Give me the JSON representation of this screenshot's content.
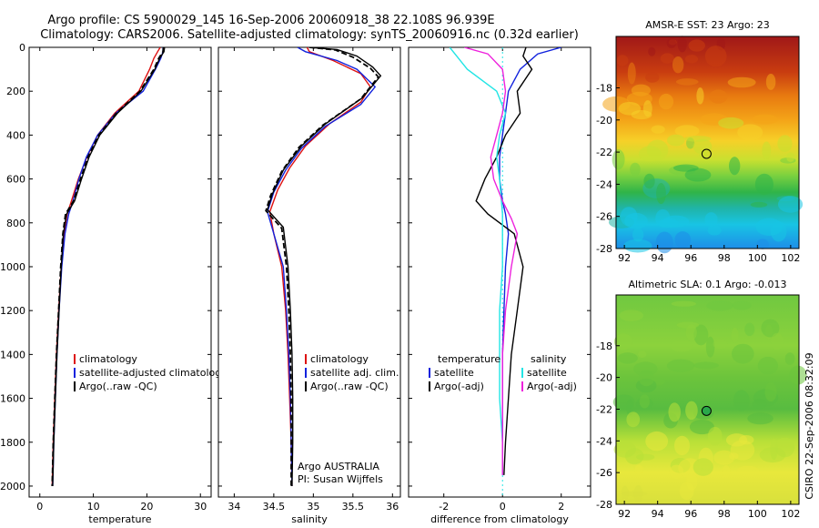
{
  "header": {
    "line1": "Argo profile: CS 5900029_145 16-Sep-2006 20060918_38 22.108S 96.939E",
    "line2": "Climatology: CARS2006. Satellite-adjusted climatology: synTS_20060916.nc (0.32d earlier)"
  },
  "side_text": "CSIRO 22-Sep-2006 08:32:09",
  "credit": {
    "line1": "Argo AUSTRALIA",
    "line2": "PI: Susan Wijffels"
  },
  "colors": {
    "climatology": "#dd1111",
    "satellite": "#1122dd",
    "argo": "#000000",
    "salinity_satellite": "#22e5e5",
    "salinity_argo": "#ee22dd"
  },
  "chart_data": [
    {
      "type": "line",
      "xlabel": "temperature",
      "ylim": [
        2050,
        0
      ],
      "xlim": [
        -2,
        32
      ],
      "xticks": [
        0,
        10,
        20,
        30
      ],
      "yticks": [
        0,
        200,
        400,
        600,
        800,
        1000,
        1200,
        1400,
        1600,
        1800,
        2000
      ],
      "legend": {
        "placement": "lower-right",
        "entries": [
          "climatology",
          "satellite-adjusted climatology",
          "Argo(..raw -QC)"
        ]
      },
      "series": [
        {
          "name": "climatology",
          "color": "#dd1111",
          "points": [
            [
              22.5,
              0
            ],
            [
              22,
              20
            ],
            [
              21.3,
              50
            ],
            [
              20.5,
              100
            ],
            [
              18.5,
              200
            ],
            [
              14,
              300
            ],
            [
              10.8,
              400
            ],
            [
              8.8,
              500
            ],
            [
              7.2,
              600
            ],
            [
              5.9,
              700
            ],
            [
              5.1,
              760
            ],
            [
              4.5,
              850
            ],
            [
              4,
              1000
            ],
            [
              3.5,
              1200
            ],
            [
              3.1,
              1400
            ],
            [
              2.8,
              1600
            ],
            [
              2.5,
              1800
            ],
            [
              2.3,
              2000
            ]
          ]
        },
        {
          "name": "satellite-adjusted climatology",
          "color": "#1122dd",
          "points": [
            [
              23,
              0
            ],
            [
              23,
              20
            ],
            [
              22.6,
              50
            ],
            [
              21.6,
              100
            ],
            [
              19.3,
              200
            ],
            [
              14.2,
              300
            ],
            [
              10.8,
              400
            ],
            [
              8.7,
              500
            ],
            [
              7.3,
              600
            ],
            [
              6.2,
              700
            ],
            [
              5.4,
              760
            ],
            [
              4.7,
              850
            ],
            [
              4.1,
              1000
            ],
            [
              3.6,
              1200
            ],
            [
              3.2,
              1400
            ],
            [
              2.9,
              1600
            ],
            [
              2.6,
              1800
            ],
            [
              2.4,
              2000
            ]
          ]
        },
        {
          "name": "Argo(..raw -QC)",
          "color": "#000000",
          "points": [
            [
              23.3,
              0
            ],
            [
              23.2,
              20
            ],
            [
              22.4,
              50
            ],
            [
              21.5,
              100
            ],
            [
              18.9,
              200
            ],
            [
              14.5,
              300
            ],
            [
              11.2,
              400
            ],
            [
              9.2,
              500
            ],
            [
              7.8,
              600
            ],
            [
              6.5,
              700
            ],
            [
              5,
              760
            ],
            [
              4.4,
              850
            ],
            [
              4,
              1000
            ],
            [
              3.6,
              1200
            ],
            [
              3.2,
              1400
            ],
            [
              2.9,
              1600
            ],
            [
              2.6,
              1800
            ],
            [
              2.4,
              2000
            ]
          ]
        },
        {
          "name": "Argo(-adj)",
          "color": "#000000",
          "dash": true,
          "points": [
            [
              23.1,
              0
            ],
            [
              23,
              20
            ],
            [
              22.2,
              50
            ],
            [
              21.3,
              100
            ],
            [
              18.7,
              200
            ],
            [
              14.3,
              300
            ],
            [
              11,
              400
            ],
            [
              9,
              500
            ],
            [
              7.6,
              600
            ],
            [
              6.3,
              700
            ],
            [
              4.8,
              760
            ],
            [
              4.3,
              850
            ],
            [
              3.9,
              1000
            ],
            [
              3.5,
              1200
            ],
            [
              3.1,
              1400
            ],
            [
              2.8,
              1600
            ],
            [
              2.5,
              1800
            ],
            [
              2.3,
              2000
            ]
          ]
        }
      ]
    },
    {
      "type": "line",
      "xlabel": "salinity",
      "ylim": [
        2050,
        0
      ],
      "xlim": [
        33.8,
        36.1
      ],
      "xticks": [
        34,
        34.5,
        35,
        35.5,
        36
      ],
      "legend": {
        "placement": "lower-right",
        "entries": [
          "climatology",
          "satellite adj. clim.",
          "Argo(..raw -QC)"
        ]
      },
      "series": [
        {
          "name": "climatology",
          "color": "#dd1111",
          "points": [
            [
              34.92,
              0
            ],
            [
              34.95,
              20
            ],
            [
              35.25,
              60
            ],
            [
              35.6,
              120
            ],
            [
              35.72,
              180
            ],
            [
              35.6,
              250
            ],
            [
              35.2,
              350
            ],
            [
              34.9,
              450
            ],
            [
              34.7,
              550
            ],
            [
              34.55,
              650
            ],
            [
              34.45,
              750
            ],
            [
              34.5,
              850
            ],
            [
              34.6,
              1000
            ],
            [
              34.65,
              1200
            ],
            [
              34.68,
              1400
            ],
            [
              34.7,
              1600
            ],
            [
              34.72,
              1800
            ],
            [
              34.73,
              2000
            ]
          ]
        },
        {
          "name": "satellite adj. clim.",
          "color": "#1122dd",
          "points": [
            [
              34.8,
              0
            ],
            [
              34.9,
              20
            ],
            [
              35.3,
              60
            ],
            [
              35.55,
              100
            ],
            [
              35.78,
              180
            ],
            [
              35.6,
              260
            ],
            [
              35.15,
              360
            ],
            [
              34.85,
              460
            ],
            [
              34.65,
              560
            ],
            [
              34.5,
              660
            ],
            [
              34.42,
              750
            ],
            [
              34.5,
              850
            ],
            [
              34.62,
              1000
            ],
            [
              34.66,
              1200
            ],
            [
              34.69,
              1400
            ],
            [
              34.71,
              1600
            ],
            [
              34.72,
              1800
            ],
            [
              34.73,
              2000
            ]
          ]
        },
        {
          "name": "Argo(..raw -QC)",
          "color": "#000000",
          "points": [
            [
              34.95,
              0
            ],
            [
              35.3,
              10
            ],
            [
              35.55,
              40
            ],
            [
              35.75,
              90
            ],
            [
              35.85,
              130
            ],
            [
              35.62,
              230
            ],
            [
              35.15,
              350
            ],
            [
              34.85,
              450
            ],
            [
              34.62,
              560
            ],
            [
              34.48,
              670
            ],
            [
              34.42,
              740
            ],
            [
              34.62,
              820
            ],
            [
              34.68,
              1000
            ],
            [
              34.71,
              1200
            ],
            [
              34.73,
              1400
            ],
            [
              34.74,
              1600
            ],
            [
              34.74,
              1800
            ],
            [
              34.73,
              2000
            ]
          ]
        },
        {
          "name": "Argo(-adj)",
          "color": "#000000",
          "dash": true,
          "points": [
            [
              34.95,
              0
            ],
            [
              35.28,
              12
            ],
            [
              35.5,
              45
            ],
            [
              35.72,
              95
            ],
            [
              35.82,
              135
            ],
            [
              35.6,
              235
            ],
            [
              35.12,
              355
            ],
            [
              34.82,
              455
            ],
            [
              34.6,
              565
            ],
            [
              34.46,
              675
            ],
            [
              34.4,
              745
            ],
            [
              34.6,
              825
            ],
            [
              34.66,
              1000
            ],
            [
              34.69,
              1200
            ],
            [
              34.71,
              1400
            ],
            [
              34.72,
              1600
            ],
            [
              34.72,
              1800
            ],
            [
              34.72,
              2000
            ]
          ]
        }
      ]
    },
    {
      "type": "line",
      "xlabel": "difference from climatology",
      "ylim": [
        2050,
        0
      ],
      "xlim": [
        -3.2,
        3.0
      ],
      "xticks": [
        -2,
        0,
        2
      ],
      "legend": {
        "placement": "lower-left",
        "headers": [
          "temperature",
          "salinity"
        ],
        "entries": [
          "satellite",
          "Argo(-adj)",
          "satellite",
          "Argo(-adj)"
        ]
      },
      "series": [
        {
          "name": "satellite",
          "group": "temperature",
          "color": "#1122dd",
          "points": [
            [
              2,
              0
            ],
            [
              1.2,
              30
            ],
            [
              0.6,
              100
            ],
            [
              0.2,
              200
            ],
            [
              0.1,
              300
            ],
            [
              0,
              400
            ],
            [
              -0.1,
              500
            ],
            [
              -0.1,
              600
            ],
            [
              0,
              700
            ],
            [
              0.1,
              760
            ],
            [
              0.2,
              850
            ],
            [
              0.1,
              1000
            ],
            [
              0.05,
              1200
            ],
            [
              0,
              1400
            ],
            [
              0,
              1600
            ],
            [
              0,
              1800
            ],
            [
              0,
              1950
            ]
          ]
        },
        {
          "name": "Argo(-adj)",
          "group": "temperature",
          "color": "#000000",
          "points": [
            [
              0.8,
              0
            ],
            [
              0.7,
              40
            ],
            [
              1,
              100
            ],
            [
              0.5,
              200
            ],
            [
              0.6,
              300
            ],
            [
              0.1,
              400
            ],
            [
              -0.2,
              500
            ],
            [
              -0.6,
              600
            ],
            [
              -0.9,
              700
            ],
            [
              -0.5,
              760
            ],
            [
              0.4,
              850
            ],
            [
              0.7,
              1000
            ],
            [
              0.5,
              1200
            ],
            [
              0.3,
              1400
            ],
            [
              0.2,
              1600
            ],
            [
              0.1,
              1800
            ],
            [
              0.05,
              1950
            ]
          ]
        },
        {
          "name": "satellite",
          "group": "salinity",
          "color": "#22e5e5",
          "points": [
            [
              -1.8,
              0
            ],
            [
              -1.2,
              100
            ],
            [
              -0.2,
              200
            ],
            [
              0.1,
              300
            ],
            [
              -0.1,
              400
            ],
            [
              -0.2,
              500
            ],
            [
              -0.1,
              600
            ],
            [
              0,
              760
            ],
            [
              0,
              1000
            ],
            [
              -0.1,
              1200
            ],
            [
              -0.1,
              1400
            ],
            [
              -0.1,
              1600
            ],
            [
              0,
              1800
            ],
            [
              0,
              1950
            ]
          ]
        },
        {
          "name": "Argo(-adj)",
          "group": "salinity",
          "color": "#ee22dd",
          "points": [
            [
              -1.3,
              0
            ],
            [
              -0.5,
              30
            ],
            [
              0,
              100
            ],
            [
              0.1,
              200
            ],
            [
              0,
              300
            ],
            [
              -0.2,
              400
            ],
            [
              -0.4,
              500
            ],
            [
              -0.3,
              600
            ],
            [
              0,
              700
            ],
            [
              0.3,
              780
            ],
            [
              0.5,
              850
            ],
            [
              0.3,
              1000
            ],
            [
              0.1,
              1200
            ],
            [
              0,
              1400
            ],
            [
              0,
              1600
            ],
            [
              0,
              1800
            ],
            [
              0,
              1950
            ]
          ]
        }
      ]
    },
    {
      "type": "heatmap",
      "title": "AMSR-E SST: 23 Argo: 23",
      "xlim": [
        91.5,
        102.5
      ],
      "ylim": [
        -28,
        -14.8
      ],
      "xticks": [
        92,
        94,
        96,
        98,
        100,
        102
      ],
      "yticks": [
        -18,
        -20,
        -22,
        -24,
        -26,
        -28
      ],
      "marker": {
        "lon": 96.939,
        "lat": -22.108
      },
      "bands": [
        {
          "lat": -14.8,
          "color": "#a01818"
        },
        {
          "lat": -17,
          "color": "#c83c10"
        },
        {
          "lat": -18.5,
          "color": "#e87a10"
        },
        {
          "lat": -20,
          "color": "#f4a418"
        },
        {
          "lat": -21.3,
          "color": "#f6d028"
        },
        {
          "lat": -22.5,
          "color": "#c8e030"
        },
        {
          "lat": -23.5,
          "color": "#78d040"
        },
        {
          "lat": -24.5,
          "color": "#30b448"
        },
        {
          "lat": -25.5,
          "color": "#20b4a8"
        },
        {
          "lat": -26.5,
          "color": "#18c4e4"
        },
        {
          "lat": -28,
          "color": "#1e8ee8"
        }
      ]
    },
    {
      "type": "heatmap",
      "title": "Altimetric SLA: 0.1 Argo: -0.013",
      "xlim": [
        91.5,
        102.5
      ],
      "ylim": [
        -28,
        -14.8
      ],
      "xticks": [
        92,
        94,
        96,
        98,
        100,
        102
      ],
      "yticks": [
        -18,
        -20,
        -22,
        -24,
        -26,
        -28
      ],
      "marker": {
        "lon": 96.939,
        "lat": -22.108
      },
      "bands": [
        {
          "lat": -14.8,
          "color": "#70c840"
        },
        {
          "lat": -18,
          "color": "#8cd23c"
        },
        {
          "lat": -20,
          "color": "#6cc43c"
        },
        {
          "lat": -22,
          "color": "#58bc40"
        },
        {
          "lat": -24,
          "color": "#b8e038"
        },
        {
          "lat": -26,
          "color": "#e8e83c"
        },
        {
          "lat": -28,
          "color": "#d8e03c"
        }
      ]
    }
  ]
}
